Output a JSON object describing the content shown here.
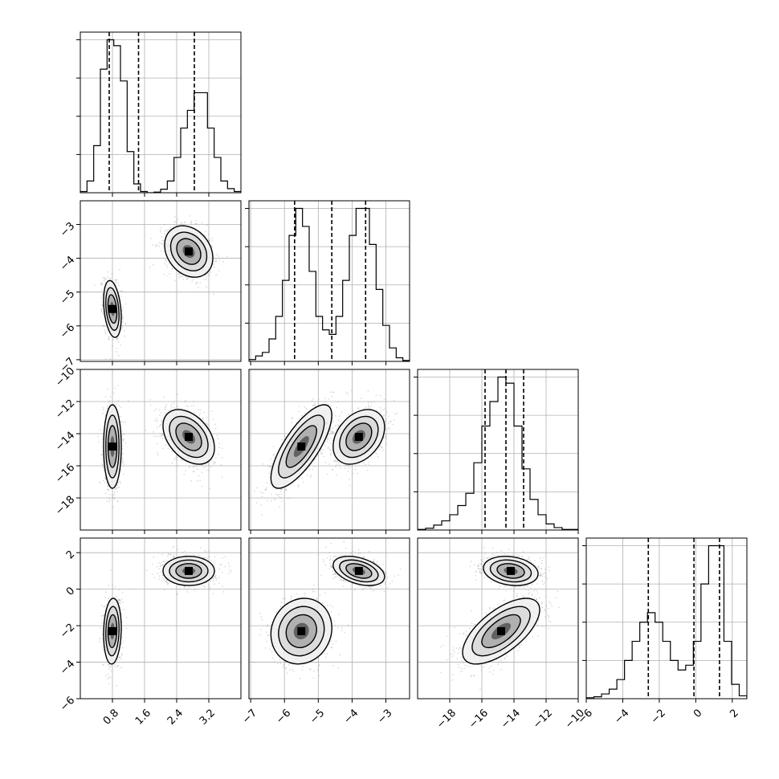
{
  "chart_data": {
    "type": "corner",
    "grid": true,
    "variables": [
      {
        "range": [
          0,
          4
        ],
        "ticks": [
          0.8,
          1.6,
          2.4,
          3.2
        ],
        "tick_labels": [
          "0.8",
          "1.6",
          "2.4",
          "3.2"
        ],
        "quantiles": [
          0.72,
          1.45,
          2.84
        ]
      },
      {
        "range": [
          -7.05,
          -2.3
        ],
        "ticks": [
          -7,
          -6,
          -5,
          -4,
          -3
        ],
        "tick_labels": [
          "−7",
          "−6",
          "−5",
          "−4",
          "−3"
        ],
        "quantiles": [
          -5.7,
          -4.6,
          -3.6
        ]
      },
      {
        "range": [
          -20,
          -10
        ],
        "ticks": [
          -18,
          -16,
          -14,
          -12,
          -10
        ],
        "tick_labels": [
          "−18",
          "−16",
          "−14",
          "−12",
          "−10"
        ],
        "quantiles": [
          -15.8,
          -14.5,
          -13.4
        ]
      },
      {
        "range": [
          -6,
          2.8
        ],
        "ticks": [
          -6,
          -4,
          -2,
          0,
          2
        ],
        "tick_labels": [
          "−6",
          "−4",
          "−2",
          "0",
          "2"
        ],
        "quantiles": [
          -2.6,
          -0.1,
          1.3
        ]
      }
    ],
    "histograms": [
      {
        "counts": [
          0.2,
          2,
          8,
          21,
          26,
          25,
          19,
          7,
          1.5,
          0.2,
          0,
          0.1,
          0.6,
          2,
          6,
          11,
          14,
          17,
          17,
          11,
          6,
          2,
          0.7,
          0.2
        ]
      },
      {
        "counts": [
          0.2,
          0.6,
          1,
          2.5,
          5,
          9,
          14,
          17,
          15,
          10,
          5,
          3.5,
          3,
          5,
          9,
          14,
          17,
          17,
          13,
          8,
          4,
          1.5,
          0.4,
          0.1
        ]
      },
      {
        "counts": [
          0.1,
          0.3,
          0.8,
          1.5,
          2.5,
          4,
          6,
          11,
          17,
          21,
          25,
          24,
          17,
          10,
          5,
          2.5,
          1,
          0.4,
          0.1,
          0.1
        ]
      },
      {
        "counts": [
          0.1,
          0.2,
          0.5,
          1,
          2,
          4,
          6,
          8,
          9,
          8,
          6,
          4,
          3,
          3.5,
          6,
          12,
          16,
          16,
          6,
          1.5,
          0.3
        ]
      }
    ],
    "scatter_clusters": {
      "1-0": [
        {
          "cx": 0.8,
          "cy": -5.5,
          "sx": 0.11,
          "sy": 0.42,
          "rho": -0.3,
          "n": 900
        },
        {
          "cx": 2.7,
          "cy": -3.8,
          "sx": 0.3,
          "sy": 0.38,
          "rho": -0.25,
          "n": 900
        }
      ],
      "2-0": [
        {
          "cx": 0.8,
          "cy": -14.8,
          "sx": 0.11,
          "sy": 1.3,
          "rho": 0,
          "n": 900
        },
        {
          "cx": 2.7,
          "cy": -14.2,
          "sx": 0.32,
          "sy": 0.85,
          "rho": -0.4,
          "n": 900
        }
      ],
      "2-1": [
        {
          "cx": -5.5,
          "cy": -14.8,
          "sx": 0.45,
          "sy": 1.3,
          "rho": 0.75,
          "n": 900
        },
        {
          "cx": -3.8,
          "cy": -14.2,
          "sx": 0.38,
          "sy": 0.85,
          "rho": 0.35,
          "n": 900
        }
      ],
      "3-0": [
        {
          "cx": 0.8,
          "cy": -2.3,
          "sx": 0.11,
          "sy": 0.9,
          "rho": 0.1,
          "n": 900
        },
        {
          "cx": 2.7,
          "cy": 1.0,
          "sx": 0.32,
          "sy": 0.4,
          "rho": 0,
          "n": 900
        }
      ],
      "3-1": [
        {
          "cx": -5.5,
          "cy": -2.3,
          "sx": 0.45,
          "sy": 0.9,
          "rho": 0.1,
          "n": 900
        },
        {
          "cx": -3.8,
          "cy": 1.0,
          "sx": 0.38,
          "sy": 0.4,
          "rho": -0.4,
          "n": 900
        }
      ],
      "3-2": [
        {
          "cx": -14.8,
          "cy": -2.3,
          "sx": 1.2,
          "sy": 0.9,
          "rho": 0.65,
          "n": 900
        },
        {
          "cx": -14.2,
          "cy": 1.0,
          "sx": 0.85,
          "sy": 0.4,
          "rho": -0.2,
          "n": 900
        }
      ]
    }
  }
}
